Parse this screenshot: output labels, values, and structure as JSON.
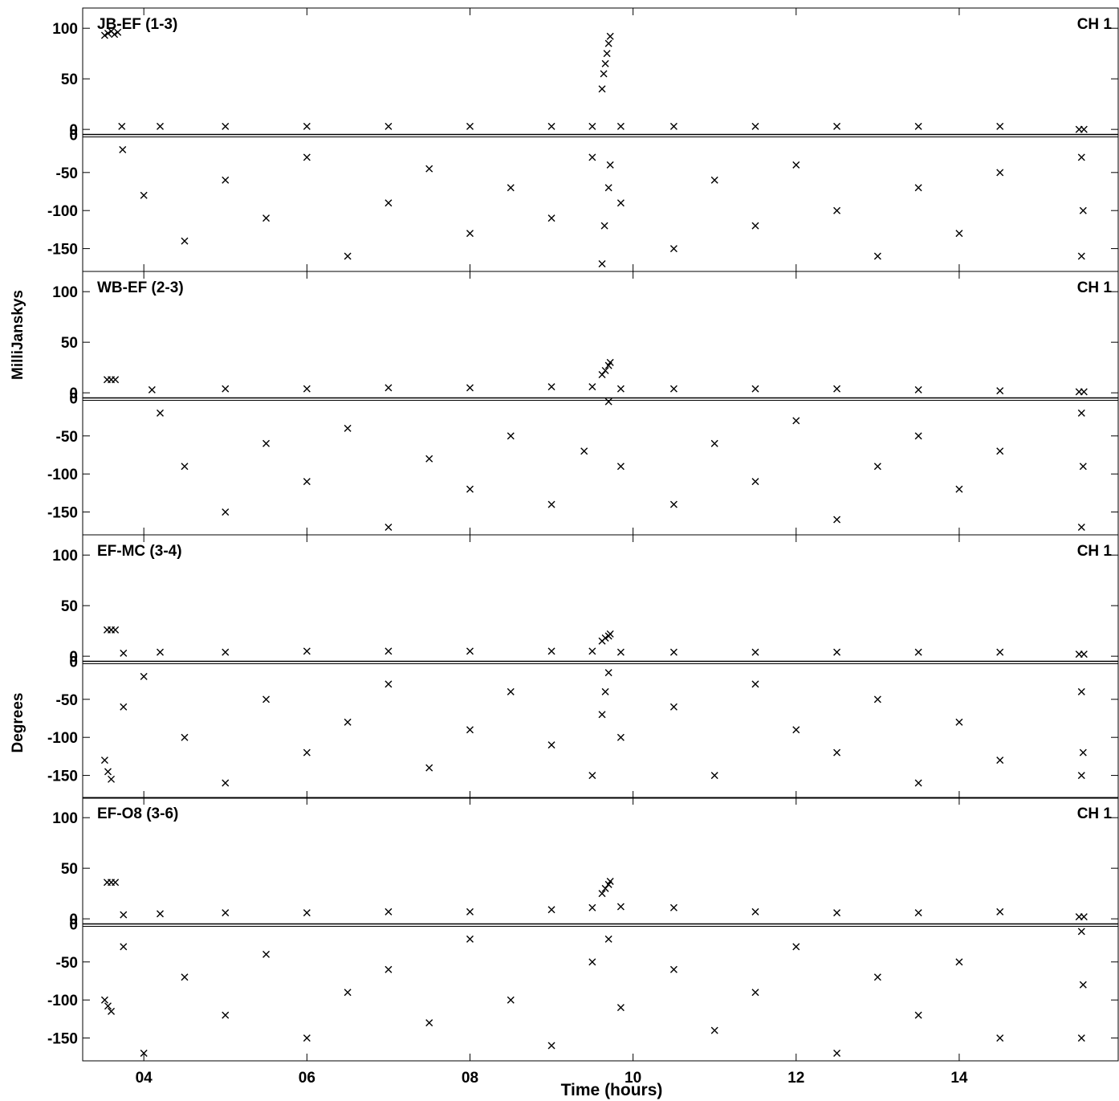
{
  "figure": {
    "ylabel_amplitude": "MilliJanskys",
    "ylabel_phase": "Degrees",
    "xlabel": "Time (hours)",
    "x_ticks": [
      "04",
      "06",
      "08",
      "10",
      "12",
      "14"
    ],
    "x_tick_values": [
      4,
      6,
      8,
      10,
      12,
      14
    ]
  },
  "chart_data": [
    {
      "type": "scatter",
      "title": "JB-EF (1-3)",
      "channel": "CH 1",
      "xlim": [
        3.25,
        15.95
      ],
      "amp_ylim": [
        -5,
        120
      ],
      "amp_ticks": [
        0,
        50,
        100
      ],
      "phase_ylim": [
        -180,
        0
      ],
      "phase_ticks": [
        0,
        -50,
        -100,
        -150
      ],
      "series": [
        {
          "name": "amplitude",
          "points": [
            [
              3.52,
              93
            ],
            [
              3.56,
              95
            ],
            [
              3.6,
              97
            ],
            [
              3.64,
              94
            ],
            [
              3.68,
              96
            ],
            [
              3.73,
              3
            ],
            [
              4.2,
              3
            ],
            [
              5.0,
              3
            ],
            [
              6.0,
              3
            ],
            [
              7.0,
              3
            ],
            [
              8.0,
              3
            ],
            [
              9.0,
              3
            ],
            [
              9.5,
              3
            ],
            [
              9.62,
              40
            ],
            [
              9.64,
              55
            ],
            [
              9.66,
              65
            ],
            [
              9.68,
              75
            ],
            [
              9.7,
              85
            ],
            [
              9.72,
              92
            ],
            [
              9.85,
              3
            ],
            [
              10.5,
              3
            ],
            [
              11.5,
              3
            ],
            [
              12.5,
              3
            ],
            [
              13.5,
              3
            ],
            [
              14.5,
              3
            ],
            [
              15.47,
              0
            ],
            [
              15.53,
              0
            ]
          ]
        },
        {
          "name": "phase",
          "points": [
            [
              3.74,
              -20
            ],
            [
              4.0,
              -80
            ],
            [
              4.5,
              -140
            ],
            [
              5.0,
              -60
            ],
            [
              5.5,
              -110
            ],
            [
              6.0,
              -30
            ],
            [
              6.5,
              -160
            ],
            [
              7.0,
              -90
            ],
            [
              7.5,
              -45
            ],
            [
              8.0,
              -130
            ],
            [
              8.5,
              -70
            ],
            [
              9.0,
              -110
            ],
            [
              9.5,
              -30
            ],
            [
              9.62,
              -170
            ],
            [
              9.65,
              -120
            ],
            [
              9.7,
              -70
            ],
            [
              9.72,
              -40
            ],
            [
              9.85,
              -90
            ],
            [
              10.5,
              -150
            ],
            [
              11.0,
              -60
            ],
            [
              11.5,
              -120
            ],
            [
              12.0,
              -40
            ],
            [
              12.5,
              -100
            ],
            [
              13.0,
              -160
            ],
            [
              13.5,
              -70
            ],
            [
              14.0,
              -130
            ],
            [
              14.5,
              -50
            ],
            [
              15.5,
              -30
            ],
            [
              15.52,
              -100
            ],
            [
              15.5,
              -160
            ]
          ]
        }
      ]
    },
    {
      "type": "scatter",
      "title": "WB-EF (2-3)",
      "channel": "CH 1",
      "xlim": [
        3.25,
        15.95
      ],
      "amp_ylim": [
        -5,
        120
      ],
      "amp_ticks": [
        0,
        50,
        100
      ],
      "phase_ylim": [
        -180,
        0
      ],
      "phase_ticks": [
        0,
        -50,
        -100,
        -150
      ],
      "series": [
        {
          "name": "amplitude",
          "points": [
            [
              3.55,
              13
            ],
            [
              3.6,
              13
            ],
            [
              3.65,
              13
            ],
            [
              4.1,
              3
            ],
            [
              5.0,
              4
            ],
            [
              6.0,
              4
            ],
            [
              7.0,
              5
            ],
            [
              8.0,
              5
            ],
            [
              9.0,
              6
            ],
            [
              9.5,
              6
            ],
            [
              9.62,
              18
            ],
            [
              9.66,
              22
            ],
            [
              9.7,
              27
            ],
            [
              9.72,
              30
            ],
            [
              9.85,
              4
            ],
            [
              10.5,
              4
            ],
            [
              11.5,
              4
            ],
            [
              12.5,
              4
            ],
            [
              13.5,
              3
            ],
            [
              14.5,
              2
            ],
            [
              15.47,
              1
            ],
            [
              15.53,
              1
            ]
          ]
        },
        {
          "name": "phase",
          "points": [
            [
              4.2,
              -20
            ],
            [
              4.5,
              -90
            ],
            [
              5.0,
              -150
            ],
            [
              5.5,
              -60
            ],
            [
              6.0,
              -110
            ],
            [
              6.5,
              -40
            ],
            [
              7.0,
              -170
            ],
            [
              7.5,
              -80
            ],
            [
              8.0,
              -120
            ],
            [
              8.5,
              -50
            ],
            [
              9.0,
              -140
            ],
            [
              9.4,
              -70
            ],
            [
              9.7,
              -5
            ],
            [
              9.85,
              -90
            ],
            [
              10.5,
              -140
            ],
            [
              11.0,
              -60
            ],
            [
              11.5,
              -110
            ],
            [
              12.0,
              -30
            ],
            [
              12.5,
              -160
            ],
            [
              13.0,
              -90
            ],
            [
              13.5,
              -50
            ],
            [
              14.0,
              -120
            ],
            [
              14.5,
              -70
            ],
            [
              15.5,
              -20
            ],
            [
              15.52,
              -90
            ],
            [
              15.5,
              -170
            ]
          ]
        }
      ]
    },
    {
      "type": "scatter",
      "title": "EF-MC (3-4)",
      "channel": "CH 1",
      "xlim": [
        3.25,
        15.95
      ],
      "amp_ylim": [
        -5,
        120
      ],
      "amp_ticks": [
        0,
        50,
        100
      ],
      "phase_ylim": [
        -180,
        0
      ],
      "phase_ticks": [
        0,
        -50,
        -100,
        -150
      ],
      "series": [
        {
          "name": "amplitude",
          "points": [
            [
              3.55,
              26
            ],
            [
              3.6,
              26
            ],
            [
              3.65,
              26
            ],
            [
              3.75,
              3
            ],
            [
              4.2,
              4
            ],
            [
              5.0,
              4
            ],
            [
              6.0,
              5
            ],
            [
              7.0,
              5
            ],
            [
              8.0,
              5
            ],
            [
              9.0,
              5
            ],
            [
              9.5,
              5
            ],
            [
              9.62,
              15
            ],
            [
              9.66,
              18
            ],
            [
              9.7,
              20
            ],
            [
              9.72,
              22
            ],
            [
              9.85,
              4
            ],
            [
              10.5,
              4
            ],
            [
              11.5,
              4
            ],
            [
              12.5,
              4
            ],
            [
              13.5,
              4
            ],
            [
              14.5,
              4
            ],
            [
              15.47,
              2
            ],
            [
              15.53,
              2
            ]
          ]
        },
        {
          "name": "phase",
          "points": [
            [
              3.52,
              -130
            ],
            [
              3.56,
              -145
            ],
            [
              3.6,
              -155
            ],
            [
              3.75,
              -60
            ],
            [
              4.0,
              -20
            ],
            [
              4.5,
              -100
            ],
            [
              5.0,
              -160
            ],
            [
              5.5,
              -50
            ],
            [
              6.0,
              -120
            ],
            [
              6.5,
              -80
            ],
            [
              7.0,
              -30
            ],
            [
              7.5,
              -140
            ],
            [
              8.0,
              -90
            ],
            [
              8.5,
              -40
            ],
            [
              9.0,
              -110
            ],
            [
              9.5,
              -150
            ],
            [
              9.62,
              -70
            ],
            [
              9.66,
              -40
            ],
            [
              9.7,
              -15
            ],
            [
              9.85,
              -100
            ],
            [
              10.5,
              -60
            ],
            [
              11.0,
              -150
            ],
            [
              11.5,
              -30
            ],
            [
              12.0,
              -90
            ],
            [
              12.5,
              -120
            ],
            [
              13.0,
              -50
            ],
            [
              13.5,
              -160
            ],
            [
              14.0,
              -80
            ],
            [
              14.5,
              -130
            ],
            [
              15.5,
              -40
            ],
            [
              15.52,
              -120
            ],
            [
              15.5,
              -150
            ]
          ]
        }
      ]
    },
    {
      "type": "scatter",
      "title": "EF-O8 (3-6)",
      "channel": "CH 1",
      "xlim": [
        3.25,
        15.95
      ],
      "amp_ylim": [
        -5,
        120
      ],
      "amp_ticks": [
        0,
        50,
        100
      ],
      "phase_ylim": [
        -180,
        0
      ],
      "phase_ticks": [
        0,
        -50,
        -100,
        -150
      ],
      "series": [
        {
          "name": "amplitude",
          "points": [
            [
              3.55,
              36
            ],
            [
              3.6,
              36
            ],
            [
              3.65,
              36
            ],
            [
              3.75,
              4
            ],
            [
              4.2,
              5
            ],
            [
              5.0,
              6
            ],
            [
              6.0,
              6
            ],
            [
              7.0,
              7
            ],
            [
              8.0,
              7
            ],
            [
              9.0,
              9
            ],
            [
              9.5,
              11
            ],
            [
              9.62,
              25
            ],
            [
              9.66,
              30
            ],
            [
              9.7,
              34
            ],
            [
              9.72,
              37
            ],
            [
              9.85,
              12
            ],
            [
              10.5,
              11
            ],
            [
              11.5,
              7
            ],
            [
              12.5,
              6
            ],
            [
              13.5,
              6
            ],
            [
              14.5,
              7
            ],
            [
              15.47,
              2
            ],
            [
              15.53,
              2
            ]
          ]
        },
        {
          "name": "phase",
          "points": [
            [
              3.52,
              -100
            ],
            [
              3.56,
              -108
            ],
            [
              3.6,
              -115
            ],
            [
              3.75,
              -30
            ],
            [
              4.0,
              -170
            ],
            [
              4.5,
              -70
            ],
            [
              5.0,
              -120
            ],
            [
              5.5,
              -40
            ],
            [
              6.0,
              -150
            ],
            [
              6.5,
              -90
            ],
            [
              7.0,
              -60
            ],
            [
              7.5,
              -130
            ],
            [
              8.0,
              -20
            ],
            [
              8.5,
              -100
            ],
            [
              9.0,
              -160
            ],
            [
              9.5,
              -50
            ],
            [
              9.7,
              -20
            ],
            [
              9.85,
              -110
            ],
            [
              10.5,
              -60
            ],
            [
              11.0,
              -140
            ],
            [
              11.5,
              -90
            ],
            [
              12.0,
              -30
            ],
            [
              12.5,
              -170
            ],
            [
              13.0,
              -70
            ],
            [
              13.5,
              -120
            ],
            [
              14.0,
              -50
            ],
            [
              14.5,
              -150
            ],
            [
              15.5,
              -10
            ],
            [
              15.52,
              -80
            ],
            [
              15.5,
              -150
            ]
          ]
        }
      ]
    }
  ]
}
